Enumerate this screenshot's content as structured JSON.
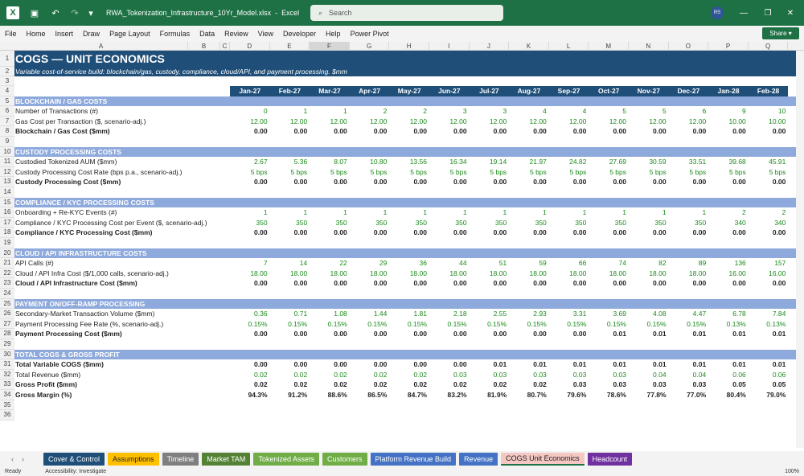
{
  "window": {
    "filename": "RWA_Tokenization_Infrastructure_10Yr_Model.xlsx",
    "app": "Excel",
    "search_placeholder": "Search",
    "user_initials": "RS"
  },
  "menu": [
    "File",
    "Home",
    "Insert",
    "Draw",
    "Page Layout",
    "Formulas",
    "Data",
    "Review",
    "View",
    "Developer",
    "Help",
    "Power Pivot"
  ],
  "share_label": "Share",
  "columns": [
    "A",
    "B",
    "C",
    "D",
    "E",
    "F",
    "G",
    "H",
    "I",
    "J",
    "K",
    "L",
    "M",
    "N",
    "O",
    "P",
    "Q"
  ],
  "sheet": {
    "title": "COGS — UNIT ECONOMICS",
    "subtitle": "Variable cost-of-service build: blockchain/gas, custody, compliance, cloud/API, and payment processing. $mm",
    "months": [
      "Jan-27",
      "Feb-27",
      "Mar-27",
      "Apr-27",
      "May-27",
      "Jun-27",
      "Jul-27",
      "Aug-27",
      "Sep-27",
      "Oct-27",
      "Nov-27",
      "Dec-27",
      "Jan-28",
      "Feb-28"
    ],
    "rows": [
      {
        "r": 5,
        "type": "section",
        "label": "BLOCKCHAIN / GAS COSTS"
      },
      {
        "r": 6,
        "type": "green",
        "label": "Number of Transactions (#)",
        "vals": [
          "0",
          "1",
          "1",
          "2",
          "2",
          "3",
          "3",
          "4",
          "4",
          "5",
          "5",
          "6",
          "9",
          "10"
        ]
      },
      {
        "r": 7,
        "type": "green",
        "label": "Gas Cost per Transaction ($, scenario-adj.)",
        "vals": [
          "12.00",
          "12.00",
          "12.00",
          "12.00",
          "12.00",
          "12.00",
          "12.00",
          "12.00",
          "12.00",
          "12.00",
          "12.00",
          "12.00",
          "10.00",
          "10.00"
        ]
      },
      {
        "r": 8,
        "type": "bold",
        "label": "Blockchain / Gas Cost ($mm)",
        "vals": [
          "0.00",
          "0.00",
          "0.00",
          "0.00",
          "0.00",
          "0.00",
          "0.00",
          "0.00",
          "0.00",
          "0.00",
          "0.00",
          "0.00",
          "0.00",
          "0.00"
        ]
      },
      {
        "r": 9,
        "type": "blank"
      },
      {
        "r": 10,
        "type": "section",
        "label": "CUSTODY PROCESSING COSTS"
      },
      {
        "r": 11,
        "type": "green",
        "label": "Custodied Tokenized AUM ($mm)",
        "vals": [
          "2.67",
          "5.36",
          "8.07",
          "10.80",
          "13.56",
          "16.34",
          "19.14",
          "21.97",
          "24.82",
          "27.69",
          "30.59",
          "33.51",
          "39.68",
          "45.91"
        ]
      },
      {
        "r": 12,
        "type": "green",
        "label": "Custody Processing Cost Rate (bps p.a., scenario-adj.)",
        "vals": [
          "5 bps",
          "5 bps",
          "5 bps",
          "5 bps",
          "5 bps",
          "5 bps",
          "5 bps",
          "5 bps",
          "5 bps",
          "5 bps",
          "5 bps",
          "5 bps",
          "5 bps",
          "5 bps"
        ]
      },
      {
        "r": 13,
        "type": "bold",
        "label": "Custody Processing Cost ($mm)",
        "vals": [
          "0.00",
          "0.00",
          "0.00",
          "0.00",
          "0.00",
          "0.00",
          "0.00",
          "0.00",
          "0.00",
          "0.00",
          "0.00",
          "0.00",
          "0.00",
          "0.00"
        ]
      },
      {
        "r": 14,
        "type": "blank"
      },
      {
        "r": 15,
        "type": "section",
        "label": "COMPLIANCE / KYC PROCESSING COSTS"
      },
      {
        "r": 16,
        "type": "green",
        "label": "Onboarding + Re-KYC Events (#)",
        "vals": [
          "1",
          "1",
          "1",
          "1",
          "1",
          "1",
          "1",
          "1",
          "1",
          "1",
          "1",
          "1",
          "2",
          "2"
        ]
      },
      {
        "r": 17,
        "type": "green",
        "label": "Compliance / KYC Processing Cost per Event ($, scenario-adj.)",
        "vals": [
          "350",
          "350",
          "350",
          "350",
          "350",
          "350",
          "350",
          "350",
          "350",
          "350",
          "350",
          "350",
          "340",
          "340"
        ]
      },
      {
        "r": 18,
        "type": "bold",
        "label": "Compliance / KYC Processing Cost ($mm)",
        "vals": [
          "0.00",
          "0.00",
          "0.00",
          "0.00",
          "0.00",
          "0.00",
          "0.00",
          "0.00",
          "0.00",
          "0.00",
          "0.00",
          "0.00",
          "0.00",
          "0.00"
        ]
      },
      {
        "r": 19,
        "type": "blank"
      },
      {
        "r": 20,
        "type": "section",
        "label": "CLOUD / API INFRASTRUCTURE COSTS"
      },
      {
        "r": 21,
        "type": "green",
        "label": "API Calls (#)",
        "vals": [
          "7",
          "14",
          "22",
          "29",
          "36",
          "44",
          "51",
          "59",
          "66",
          "74",
          "82",
          "89",
          "136",
          "157"
        ]
      },
      {
        "r": 22,
        "type": "green",
        "label": "Cloud / API Infra Cost ($/1,000 calls, scenario-adj.)",
        "vals": [
          "18.00",
          "18.00",
          "18.00",
          "18.00",
          "18.00",
          "18.00",
          "18.00",
          "18.00",
          "18.00",
          "18.00",
          "18.00",
          "18.00",
          "16.00",
          "16.00"
        ]
      },
      {
        "r": 23,
        "type": "bold",
        "label": "Cloud / API Infrastructure Cost ($mm)",
        "vals": [
          "0.00",
          "0.00",
          "0.00",
          "0.00",
          "0.00",
          "0.00",
          "0.00",
          "0.00",
          "0.00",
          "0.00",
          "0.00",
          "0.00",
          "0.00",
          "0.00"
        ]
      },
      {
        "r": 24,
        "type": "blank"
      },
      {
        "r": 25,
        "type": "section",
        "label": "PAYMENT ON/OFF-RAMP PROCESSING"
      },
      {
        "r": 26,
        "type": "green",
        "label": "Secondary-Market Transaction Volume ($mm)",
        "vals": [
          "0.36",
          "0.71",
          "1.08",
          "1.44",
          "1.81",
          "2.18",
          "2.55",
          "2.93",
          "3.31",
          "3.69",
          "4.08",
          "4.47",
          "6.78",
          "7.84"
        ]
      },
      {
        "r": 27,
        "type": "green",
        "label": "Payment Processing Fee Rate (%, scenario-adj.)",
        "vals": [
          "0.15%",
          "0.15%",
          "0.15%",
          "0.15%",
          "0.15%",
          "0.15%",
          "0.15%",
          "0.15%",
          "0.15%",
          "0.15%",
          "0.15%",
          "0.15%",
          "0.13%",
          "0.13%"
        ]
      },
      {
        "r": 28,
        "type": "bold",
        "label": "Payment Processing Cost ($mm)",
        "vals": [
          "0.00",
          "0.00",
          "0.00",
          "0.00",
          "0.00",
          "0.00",
          "0.00",
          "0.00",
          "0.00",
          "0.01",
          "0.01",
          "0.01",
          "0.01",
          "0.01"
        ]
      },
      {
        "r": 29,
        "type": "blank"
      },
      {
        "r": 30,
        "type": "section",
        "label": "TOTAL COGS & GROSS PROFIT"
      },
      {
        "r": 31,
        "type": "bold",
        "label": "Total Variable COGS ($mm)",
        "vals": [
          "0.00",
          "0.00",
          "0.00",
          "0.00",
          "0.00",
          "0.00",
          "0.01",
          "0.01",
          "0.01",
          "0.01",
          "0.01",
          "0.01",
          "0.01",
          "0.01"
        ]
      },
      {
        "r": 32,
        "type": "green",
        "label": "Total Revenue ($mm)",
        "vals": [
          "0.02",
          "0.02",
          "0.02",
          "0.02",
          "0.02",
          "0.03",
          "0.03",
          "0.03",
          "0.03",
          "0.03",
          "0.04",
          "0.04",
          "0.06",
          "0.06"
        ]
      },
      {
        "r": 33,
        "type": "bold",
        "label": "Gross Profit ($mm)",
        "vals": [
          "0.02",
          "0.02",
          "0.02",
          "0.02",
          "0.02",
          "0.02",
          "0.02",
          "0.02",
          "0.03",
          "0.03",
          "0.03",
          "0.03",
          "0.05",
          "0.05"
        ]
      },
      {
        "r": 34,
        "type": "bold",
        "label": "Gross Margin (%)",
        "vals": [
          "94.3%",
          "91.2%",
          "88.6%",
          "86.5%",
          "84.7%",
          "83.2%",
          "81.9%",
          "80.7%",
          "79.6%",
          "78.6%",
          "77.8%",
          "77.0%",
          "80.4%",
          "79.0%"
        ]
      }
    ]
  },
  "tabs": [
    {
      "label": "Cover & Control",
      "color": "#1f4e78"
    },
    {
      "label": "Assumptions",
      "color": "#ffc000",
      "text": "#222"
    },
    {
      "label": "Timeline",
      "color": "#7f7f7f"
    },
    {
      "label": "Market TAM",
      "color": "#548235"
    },
    {
      "label": "Tokenized Assets",
      "color": "#70ad47"
    },
    {
      "label": "Customers",
      "color": "#70ad47"
    },
    {
      "label": "Platform Revenue Build",
      "color": "#4472c4"
    },
    {
      "label": "Revenue",
      "color": "#4472c4"
    },
    {
      "label": "COGS Unit Economics",
      "color": "#f4c7c3",
      "text": "#222",
      "active": true
    },
    {
      "label": "Headcount",
      "color": "#7030a0"
    }
  ],
  "status": {
    "ready": "Ready",
    "accessibility": "Accessibility: Investigate",
    "zoom": "100%"
  }
}
